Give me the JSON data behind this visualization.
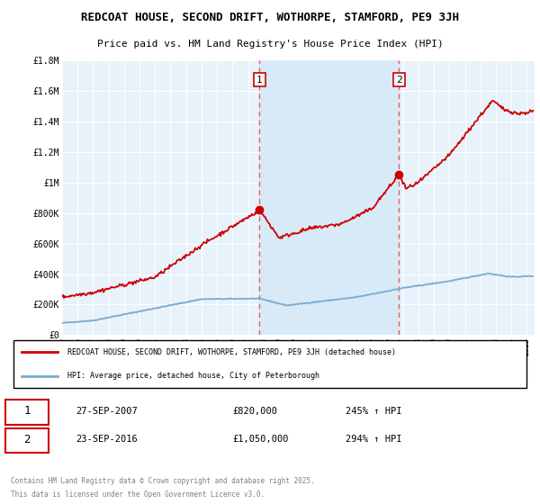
{
  "title_line1": "REDCOAT HOUSE, SECOND DRIFT, WOTHORPE, STAMFORD, PE9 3JH",
  "title_line2": "Price paid vs. HM Land Registry's House Price Index (HPI)",
  "legend_label_red": "REDCOAT HOUSE, SECOND DRIFT, WOTHORPE, STAMFORD, PE9 3JH (detached house)",
  "legend_label_blue": "HPI: Average price, detached house, City of Peterborough",
  "sale1_date": "27-SEP-2007",
  "sale1_price": "£820,000",
  "sale1_hpi": "245% ↑ HPI",
  "sale1_year": 2007.75,
  "sale1_value": 820000,
  "sale2_date": "23-SEP-2016",
  "sale2_price": "£1,050,000",
  "sale2_hpi": "294% ↑ HPI",
  "sale2_year": 2016.75,
  "sale2_value": 1050000,
  "footer_line1": "Contains HM Land Registry data © Crown copyright and database right 2025.",
  "footer_line2": "This data is licensed under the Open Government Licence v3.0.",
  "xmin": 1995,
  "xmax": 2025.5,
  "ymin": 0,
  "ymax": 1800000,
  "yticks": [
    0,
    200000,
    400000,
    600000,
    800000,
    1000000,
    1200000,
    1400000,
    1600000,
    1800000
  ],
  "ytick_labels": [
    "£0",
    "£200K",
    "£400K",
    "£600K",
    "£800K",
    "£1M",
    "£1.2M",
    "£1.4M",
    "£1.6M",
    "£1.8M"
  ],
  "red_color": "#cc0000",
  "blue_color": "#7aabcf",
  "shade_color": "#d8eaf8",
  "plot_bg_color": "#e8f2fb"
}
